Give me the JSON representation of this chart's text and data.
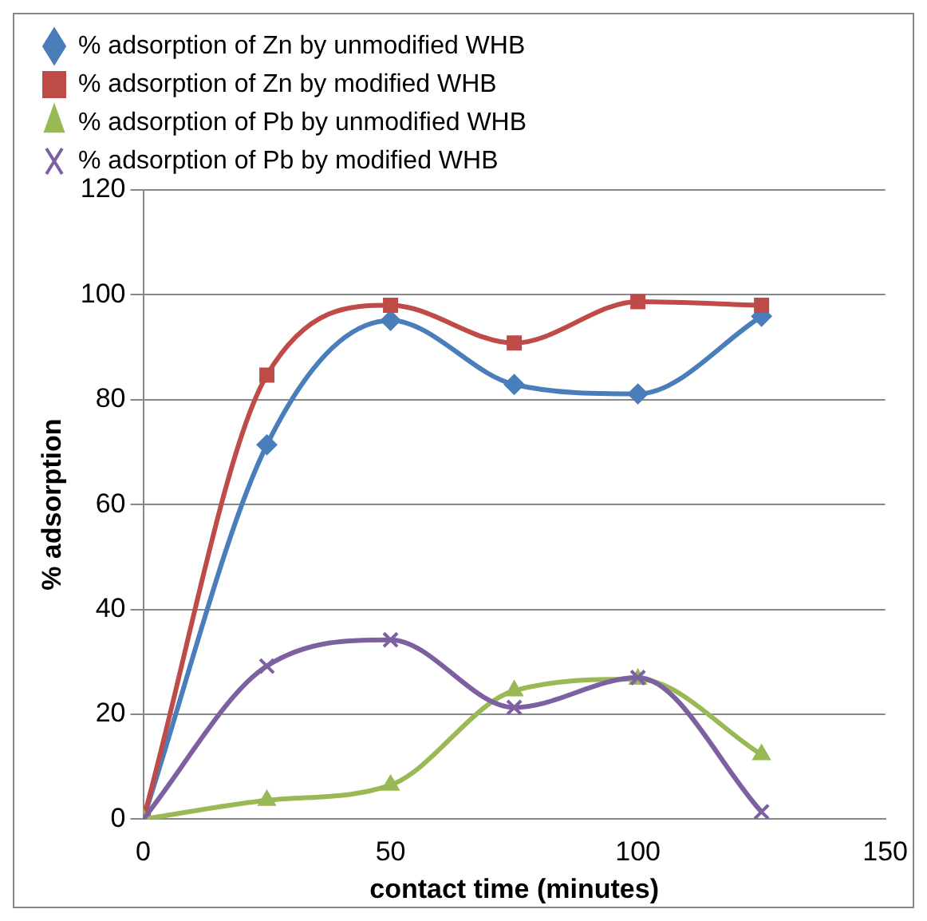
{
  "chart_data": {
    "type": "line",
    "xlabel": "contact time (minutes)",
    "ylabel": "% adsorption",
    "x": [
      0,
      25,
      50,
      75,
      100,
      125
    ],
    "xlim": [
      0,
      150
    ],
    "xticks": [
      0,
      50,
      100,
      150
    ],
    "ylim": [
      0,
      120
    ],
    "yticks": [
      0,
      20,
      40,
      60,
      80,
      100,
      120
    ],
    "grid": "y",
    "legend": "top",
    "line_style": "solid",
    "series": [
      {
        "name": "% adsorption of Zn by unmodified WHB",
        "color": "#4a7ebb",
        "marker": "diamond",
        "values": [
          0,
          71.4,
          95.1,
          82.9,
          81.1,
          95.9
        ]
      },
      {
        "name": "% adsorption of Zn by modified WHB",
        "color": "#be4b48",
        "marker": "square",
        "values": [
          0,
          84.7,
          98,
          90.8,
          98.7,
          98
        ]
      },
      {
        "name": "% adsorption of Pb by unmodified WHB",
        "color": "#98b954",
        "marker": "triangle",
        "values": [
          0,
          3.6,
          6.5,
          24.5,
          26.7,
          12.3
        ]
      },
      {
        "name": "% adsorption of Pb by modified WHB",
        "color": "#7d60a0",
        "marker": "cross",
        "values": [
          0,
          29.2,
          34.2,
          21.3,
          27,
          1.4
        ]
      }
    ]
  }
}
